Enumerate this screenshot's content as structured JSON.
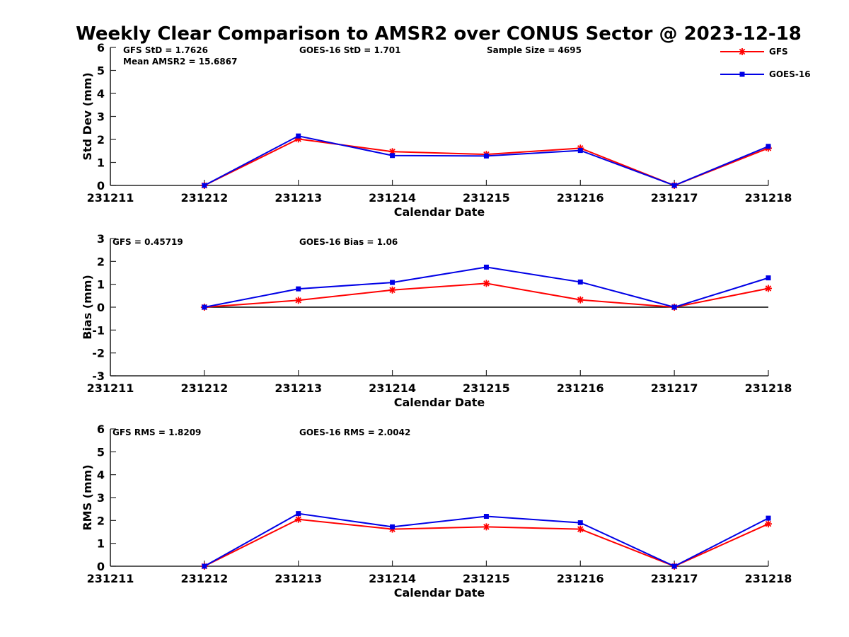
{
  "figure": {
    "title": "Weekly Clear Comparison to AMSR2 over CONUS Sector @ 2023-12-18"
  },
  "legend": {
    "placement": "top-right",
    "items": [
      {
        "label": "GFS",
        "color": "#ff0000",
        "marker": "asterisk"
      },
      {
        "label": "GOES-16",
        "color": "#0000e6",
        "marker": "square"
      }
    ]
  },
  "chart_data": [
    {
      "type": "line",
      "id": "stddev",
      "xlabel": "Calendar Date",
      "ylabel": "Std Dev (mm)",
      "categories": [
        "231211",
        "231212",
        "231213",
        "231214",
        "231215",
        "231216",
        "231217",
        "231218"
      ],
      "ylim": [
        0,
        6
      ],
      "yticks": [
        "0",
        "1",
        "2",
        "3",
        "4",
        "5",
        "6"
      ],
      "grid": false,
      "zero_line": false,
      "annotations": [
        "GFS StD = 1.7626",
        "Mean AMSR2 = 15.6867",
        "GOES-16 StD = 1.701",
        "Sample Size = 4695"
      ],
      "series": [
        {
          "name": "GFS",
          "color": "#ff0000",
          "marker": "asterisk",
          "x": [
            "231212",
            "231213",
            "231214",
            "231215",
            "231216",
            "231217",
            "231218"
          ],
          "values": [
            0.0,
            2.02,
            1.47,
            1.35,
            1.62,
            0.0,
            1.62
          ]
        },
        {
          "name": "GOES-16",
          "color": "#0000e6",
          "marker": "square",
          "x": [
            "231212",
            "231213",
            "231214",
            "231215",
            "231216",
            "231217",
            "231218"
          ],
          "values": [
            0.0,
            2.15,
            1.3,
            1.28,
            1.52,
            0.0,
            1.7
          ]
        }
      ]
    },
    {
      "type": "line",
      "id": "bias",
      "xlabel": "Calendar Date",
      "ylabel": "Bias (mm)",
      "categories": [
        "231211",
        "231212",
        "231213",
        "231214",
        "231215",
        "231216",
        "231217",
        "231218"
      ],
      "ylim": [
        -3,
        3
      ],
      "yticks": [
        "-3",
        "-2",
        "-1",
        "0",
        "1",
        "2",
        "3"
      ],
      "grid": false,
      "zero_line": true,
      "annotations": [
        "GFS = 0.45719",
        "GOES-16 Bias  = 1.06"
      ],
      "series": [
        {
          "name": "GFS",
          "color": "#ff0000",
          "marker": "asterisk",
          "x": [
            "231212",
            "231213",
            "231214",
            "231215",
            "231216",
            "231217",
            "231218"
          ],
          "values": [
            0.0,
            0.3,
            0.75,
            1.04,
            0.32,
            0.0,
            0.82
          ]
        },
        {
          "name": "GOES-16",
          "color": "#0000e6",
          "marker": "square",
          "x": [
            "231212",
            "231213",
            "231214",
            "231215",
            "231216",
            "231217",
            "231218"
          ],
          "values": [
            0.0,
            0.8,
            1.08,
            1.75,
            1.1,
            0.0,
            1.28
          ]
        }
      ]
    },
    {
      "type": "line",
      "id": "rms",
      "xlabel": "Calendar Date",
      "ylabel": "RMS (mm)",
      "categories": [
        "231211",
        "231212",
        "231213",
        "231214",
        "231215",
        "231216",
        "231217",
        "231218"
      ],
      "ylim": [
        0,
        6
      ],
      "yticks": [
        "0",
        "1",
        "2",
        "3",
        "4",
        "5",
        "6"
      ],
      "grid": false,
      "zero_line": false,
      "annotations": [
        "GFS RMS = 1.8209",
        "GOES-16 RMS = 2.0042"
      ],
      "series": [
        {
          "name": "GFS",
          "color": "#ff0000",
          "marker": "asterisk",
          "x": [
            "231212",
            "231213",
            "231214",
            "231215",
            "231216",
            "231217",
            "231218"
          ],
          "values": [
            0.0,
            2.05,
            1.62,
            1.72,
            1.62,
            0.0,
            1.85
          ]
        },
        {
          "name": "GOES-16",
          "color": "#0000e6",
          "marker": "square",
          "x": [
            "231212",
            "231213",
            "231214",
            "231215",
            "231216",
            "231217",
            "231218"
          ],
          "values": [
            0.0,
            2.3,
            1.72,
            2.18,
            1.9,
            0.0,
            2.1
          ]
        }
      ]
    }
  ]
}
